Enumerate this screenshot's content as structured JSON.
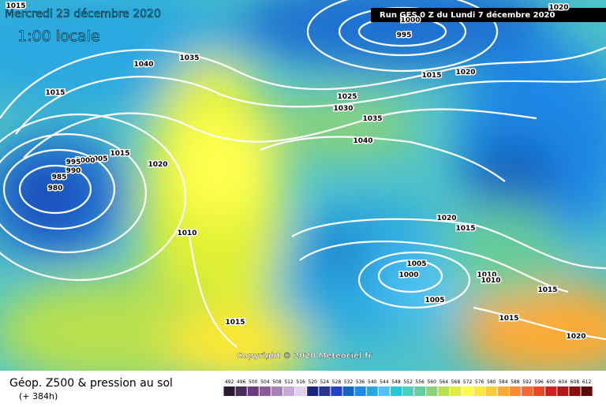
{
  "header": {
    "date": "Mercredi 23 décembre 2020",
    "time": "1:00 locale",
    "run": "Run GFS 0 Z du Lundi 7 décembre 2020"
  },
  "copyright": "Copyright © 2020 Meteociel.fr",
  "footer": {
    "title": "Géop. Z500 & pression au sol",
    "lead": "(+ 384h)"
  },
  "isobar_labels": [
    "1015",
    "1040",
    "1035",
    "1015",
    "1025",
    "1030",
    "1035",
    "1015",
    "1020",
    "995",
    "1000",
    "1020",
    "1040",
    "1015",
    "1020",
    "1005",
    "1000",
    "995",
    "990",
    "985",
    "980",
    "1010",
    "1020",
    "1015",
    "1005",
    "1000",
    "1005",
    "1010",
    "1010",
    "1015",
    "1015",
    "1020",
    "1015"
  ],
  "legend": {
    "labels": [
      "492",
      "496",
      "500",
      "504",
      "508",
      "512",
      "516",
      "520",
      "524",
      "528",
      "532",
      "536",
      "540",
      "544",
      "548",
      "552",
      "556",
      "560",
      "564",
      "568",
      "572",
      "576",
      "580",
      "584",
      "588",
      "592",
      "596",
      "600",
      "604",
      "608",
      "612"
    ],
    "colors": [
      "#2a1a35",
      "#4a2a5a",
      "#6a3a7c",
      "#8a5a9a",
      "#a880b8",
      "#c8a8d8",
      "#e0d0ea",
      "#1a237e",
      "#283593",
      "#1e40c8",
      "#1565c0",
      "#1e88e5",
      "#29a8e0",
      "#4fc3f7",
      "#26c6da",
      "#4dd0c0",
      "#66cc99",
      "#8bd27a",
      "#b8e050",
      "#e0f030",
      "#ffff40",
      "#ffe830",
      "#ffcc33",
      "#ffaa33",
      "#ff8833",
      "#ff6633",
      "#f04422",
      "#d02020",
      "#b01818",
      "#881010",
      "#600808"
    ]
  }
}
